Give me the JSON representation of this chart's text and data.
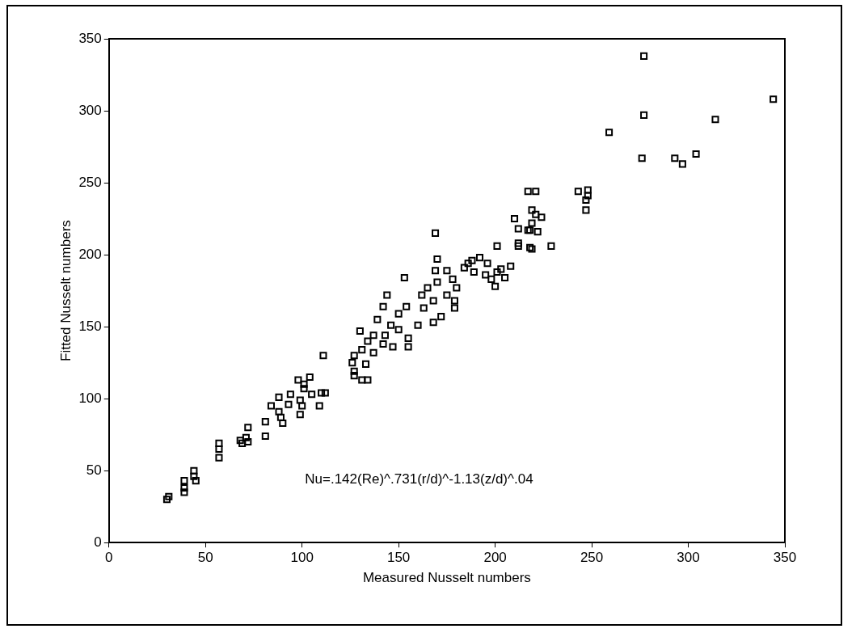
{
  "chart_data": {
    "type": "scatter",
    "xlabel": "Measured Nusselt numbers",
    "ylabel": "Fitted Nusselt numbers",
    "annotations": [
      "Nu=.142(Re)^.731(r/d)^-1.13(z/d)^.04"
    ],
    "xlim": [
      0,
      350
    ],
    "ylim": [
      0,
      350
    ],
    "xticks": [
      0,
      50,
      100,
      150,
      200,
      250,
      300,
      350
    ],
    "yticks": [
      0,
      50,
      100,
      150,
      200,
      250,
      300,
      350
    ],
    "grid": false,
    "legend": false,
    "marker": "square",
    "series": [
      {
        "color": "#000000",
        "x": [
          30,
          31,
          39,
          39,
          39,
          44,
          44,
          45,
          57,
          57,
          57,
          68,
          69,
          72,
          72,
          71,
          81,
          81,
          111,
          88,
          84,
          90,
          89,
          88,
          93,
          94,
          98,
          99,
          99,
          100,
          101,
          104,
          105,
          101,
          110,
          109,
          112,
          169,
          201,
          212,
          218,
          218,
          212,
          170,
          153,
          144,
          169,
          175,
          178,
          170,
          165,
          180,
          162,
          175,
          168,
          179,
          179,
          163,
          172,
          168,
          160,
          154,
          142,
          150,
          139,
          146,
          150,
          155,
          143,
          130,
          137,
          134,
          142,
          147,
          155,
          131,
          137,
          127,
          133,
          126,
          127,
          127,
          131,
          134,
          186,
          192,
          196,
          189,
          195,
          201,
          203,
          208,
          198,
          205,
          200,
          184,
          188,
          277,
          344,
          277,
          314,
          259,
          276,
          293,
          297,
          304,
          217,
          221,
          243,
          248,
          248,
          247,
          247,
          219,
          221,
          224,
          210,
          219,
          217,
          222,
          212,
          219,
          229
        ],
        "values": [
          30,
          32,
          43,
          38,
          35,
          50,
          46,
          43,
          69,
          65,
          59,
          71,
          69,
          80,
          70,
          73,
          84,
          74,
          130,
          101,
          95,
          83,
          87,
          91,
          96,
          103,
          113,
          99,
          89,
          95,
          107,
          115,
          103,
          110,
          104,
          95,
          104,
          215,
          206,
          206,
          205,
          217,
          218,
          197,
          184,
          172,
          189,
          189,
          183,
          181,
          177,
          177,
          172,
          172,
          168,
          168,
          163,
          163,
          157,
          153,
          151,
          164,
          164,
          159,
          155,
          151,
          148,
          142,
          144,
          147,
          144,
          140,
          138,
          136,
          136,
          134,
          132,
          130,
          124,
          125,
          119,
          116,
          113,
          113,
          194,
          198,
          194,
          188,
          186,
          188,
          190,
          192,
          183,
          184,
          178,
          191,
          196,
          338,
          308,
          297,
          294,
          285,
          267,
          267,
          263,
          270,
          244,
          244,
          244,
          245,
          241,
          238,
          231,
          231,
          228,
          226,
          225,
          222,
          217,
          216,
          208,
          204,
          206
        ]
      }
    ]
  }
}
